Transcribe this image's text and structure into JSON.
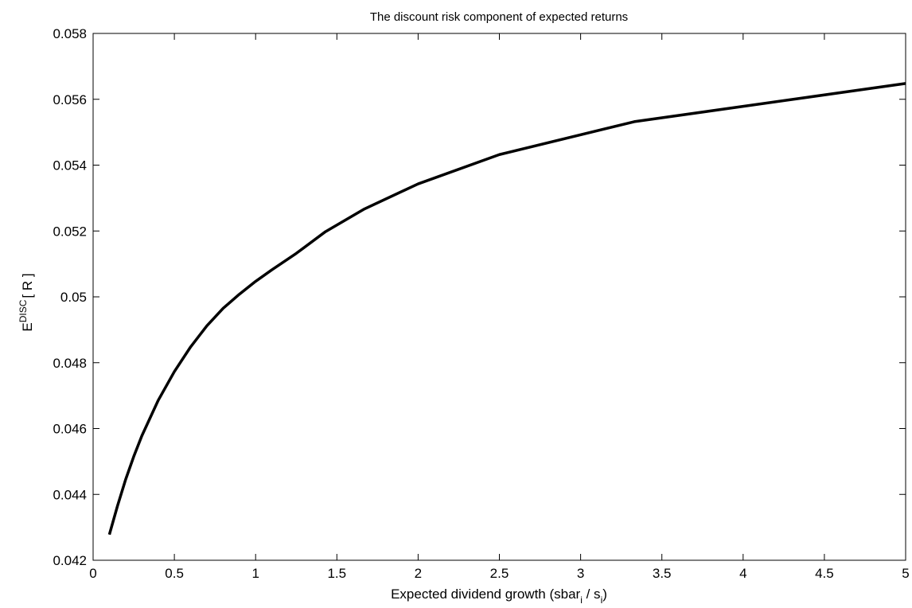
{
  "chart_data": {
    "type": "line",
    "title": "The discount risk component of expected returns",
    "xlabel": {
      "main": "Expected dividend growth (sbar",
      "sub1": "i",
      "mid": " / s",
      "sub2": "i",
      "end": ")"
    },
    "ylabel": {
      "base": "E",
      "sup": "DISC",
      "rest": "[ R ]"
    },
    "xlim": [
      0,
      5
    ],
    "ylim": [
      0.042,
      0.058
    ],
    "xticks": [
      0,
      0.5,
      1,
      1.5,
      2,
      2.5,
      3,
      3.5,
      4,
      4.5,
      5
    ],
    "xtick_labels": [
      "0",
      "0.5",
      "1",
      "1.5",
      "2",
      "2.5",
      "3",
      "3.5",
      "4",
      "4.5",
      "5"
    ],
    "yticks": [
      0.042,
      0.044,
      0.046,
      0.048,
      0.05,
      0.052,
      0.054,
      0.056,
      0.058
    ],
    "ytick_labels": [
      "0.042",
      "0.044",
      "0.046",
      "0.048",
      "0.05",
      "0.052",
      "0.054",
      "0.056",
      "0.058"
    ],
    "grid": false,
    "series": [
      {
        "color": "#000000",
        "x": [
          0.1,
          0.15,
          0.2,
          0.25,
          0.3,
          0.4,
          0.5,
          0.6,
          0.7,
          0.8,
          0.9,
          1.0,
          1.1,
          1.25,
          1.43,
          1.67,
          2.0,
          2.5,
          3.33,
          5.0
        ],
        "y": [
          0.04278,
          0.04365,
          0.04445,
          0.04515,
          0.04578,
          0.04685,
          0.04773,
          0.04848,
          0.04912,
          0.04965,
          0.05008,
          0.05047,
          0.05082,
          0.05132,
          0.05198,
          0.05267,
          0.05343,
          0.05432,
          0.05532,
          0.05648
        ]
      }
    ]
  }
}
